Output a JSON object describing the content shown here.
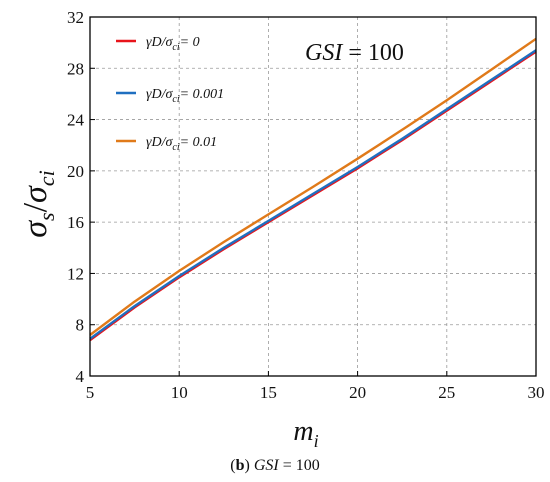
{
  "chart_data": {
    "type": "line",
    "ylabel_sigma_s": "σ",
    "ylabel_sub_s": "s",
    "ylabel_slash": "/",
    "ylabel_sigma_ci": "σ",
    "ylabel_sub_ci": "ci",
    "xlabel_m": "m",
    "xlabel_sub": "i",
    "xlim": [
      5,
      30
    ],
    "ylim": [
      4,
      32
    ],
    "xticks": [
      5,
      10,
      15,
      20,
      25,
      30
    ],
    "yticks": [
      4,
      8,
      12,
      16,
      20,
      24,
      28,
      32
    ],
    "grid": true,
    "legend_position": "top-left",
    "annotation": {
      "prefix": "GSI",
      "rest": " = 100"
    },
    "series": [
      {
        "name": "γD/σci= 0",
        "legend_parts": [
          "γD/σ",
          "ci",
          "= 0"
        ],
        "color": "#e8141b",
        "x": [
          5,
          7.5,
          10,
          12.5,
          15,
          17.5,
          20,
          22.5,
          25,
          27.5,
          30
        ],
        "y": [
          6.8,
          9.35,
          11.7,
          13.9,
          16.0,
          18.1,
          20.2,
          22.4,
          24.7,
          27.0,
          29.3
        ]
      },
      {
        "name": "γD/σci= 0.001",
        "legend_parts": [
          "γD/σ",
          "ci",
          "= 0.001"
        ],
        "color": "#1f6fc0",
        "x": [
          5,
          7.5,
          10,
          12.5,
          15,
          17.5,
          20,
          22.5,
          25,
          27.5,
          30
        ],
        "y": [
          6.9,
          9.45,
          11.8,
          14.0,
          16.1,
          18.2,
          20.3,
          22.5,
          24.8,
          27.1,
          29.4
        ]
      },
      {
        "name": "γD/σci= 0.01",
        "legend_parts": [
          "γD/σ",
          "ci",
          "= 0.01"
        ],
        "color": "#e07a1a",
        "x": [
          5,
          7.5,
          10,
          12.5,
          15,
          17.5,
          20,
          22.5,
          25,
          27.5,
          30
        ],
        "y": [
          7.2,
          9.8,
          12.2,
          14.45,
          16.6,
          18.75,
          20.95,
          23.2,
          25.5,
          27.9,
          30.3
        ]
      }
    ]
  },
  "caption": {
    "open": "(",
    "letter": "b",
    "close": ") ",
    "gsi": "GSI",
    "rest": " = 100"
  }
}
